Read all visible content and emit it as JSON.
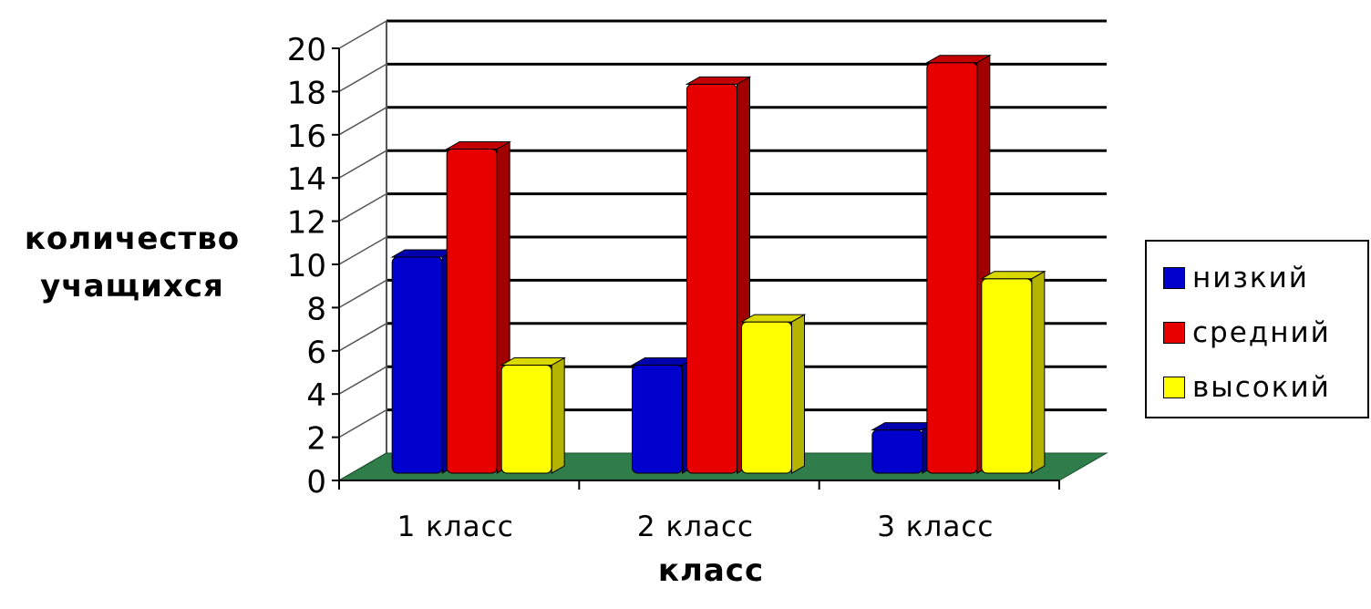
{
  "chart_data": {
    "type": "bar",
    "categories": [
      "1 класс",
      "2 класс",
      "3 класс"
    ],
    "series": [
      {
        "name": "низкий",
        "values": [
          10,
          5,
          2
        ],
        "color": "#0000cc"
      },
      {
        "name": "средний",
        "values": [
          15,
          18,
          19
        ],
        "color": "#e60000"
      },
      {
        "name": "высокий",
        "values": [
          5,
          7,
          9
        ],
        "color": "#ffff00"
      }
    ],
    "yticks": [
      "0",
      "2",
      "4",
      "6",
      "8",
      "10",
      "12",
      "14",
      "16",
      "18",
      "20"
    ],
    "ylim": [
      0,
      20
    ],
    "xlabel": "класс",
    "ylabel_lines": [
      "количество",
      "учащихся"
    ],
    "legend_position": "right",
    "grid": true,
    "floor_color": "#2e7d4a"
  }
}
